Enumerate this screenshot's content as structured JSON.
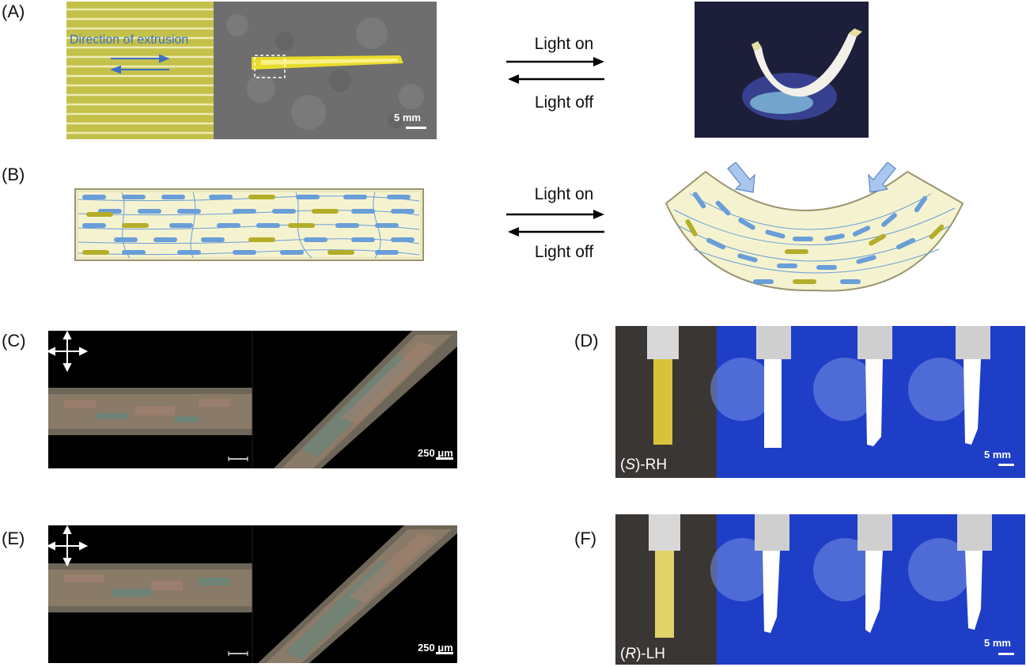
{
  "panels": {
    "A": "(A)",
    "B": "(B)",
    "C": "(C)",
    "D": "(D)",
    "E": "(E)",
    "F": "(F)"
  },
  "arrows": {
    "light_on": "Light on",
    "light_off": "Light off"
  },
  "panelA": {
    "direction_label": "Direction of extrusion",
    "scale": "5 mm"
  },
  "panelC": {
    "scale": "250 μm"
  },
  "panelD": {
    "tag_prefix": "(",
    "tag_italic": "S",
    "tag_suffix": ")-RH",
    "scale": "5 mm"
  },
  "panelE": {
    "scale": "250 μm"
  },
  "panelF": {
    "tag_prefix": "(",
    "tag_italic": "R",
    "tag_suffix": ")-LH",
    "scale": "5 mm"
  },
  "colors": {
    "fiber_yellow": "#c8c23a",
    "mesogen_blue": "#6a9ed8",
    "mesogen_olive": "#b4ad2a",
    "film_fill": "#f5f3cf",
    "uv_blue": "#1d3fd6"
  }
}
